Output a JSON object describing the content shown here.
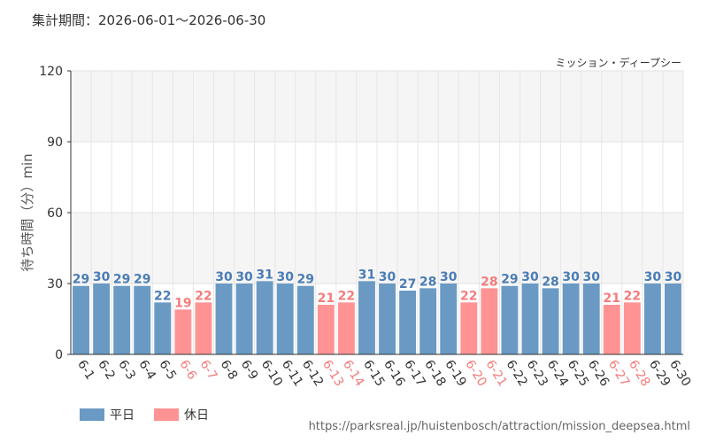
{
  "header": {
    "period": "集計期間：2026-06-01～2026-06-30",
    "attraction": "ミッション・ディープシー"
  },
  "footer": {
    "source_url": "https://parksreal.jp/huistenbosch/attraction/mission_deepsea.html"
  },
  "legend": {
    "weekday_label": "平日",
    "holiday_label": "休日"
  },
  "colors": {
    "weekday": "#6a9ac4",
    "holiday": "#ff9393",
    "weekday_text": "#4a7db5",
    "holiday_text": "#f47c7c"
  },
  "chart_data": {
    "type": "bar",
    "ylabel": "待ち時間（分）min",
    "ylim": [
      0,
      120
    ],
    "yticks": [
      0,
      30,
      60,
      90,
      120
    ],
    "categories": [
      "6-1",
      "6-2",
      "6-3",
      "6-4",
      "6-5",
      "6-6",
      "6-7",
      "6-8",
      "6-9",
      "6-10",
      "6-11",
      "6-12",
      "6-13",
      "6-14",
      "6-15",
      "6-16",
      "6-17",
      "6-18",
      "6-19",
      "6-20",
      "6-21",
      "6-22",
      "6-23",
      "6-24",
      "6-25",
      "6-26",
      "6-27",
      "6-28",
      "6-29",
      "6-30"
    ],
    "values": [
      29,
      30,
      29,
      29,
      22,
      19,
      22,
      30,
      30,
      31,
      30,
      29,
      21,
      22,
      31,
      30,
      27,
      28,
      30,
      22,
      28,
      29,
      30,
      28,
      30,
      30,
      21,
      22,
      30,
      30
    ],
    "day_type": [
      "weekday",
      "weekday",
      "weekday",
      "weekday",
      "weekday",
      "holiday",
      "holiday",
      "weekday",
      "weekday",
      "weekday",
      "weekday",
      "weekday",
      "holiday",
      "holiday",
      "weekday",
      "weekday",
      "weekday",
      "weekday",
      "weekday",
      "holiday",
      "holiday",
      "weekday",
      "weekday",
      "weekday",
      "weekday",
      "weekday",
      "holiday",
      "holiday",
      "weekday",
      "weekday"
    ]
  }
}
